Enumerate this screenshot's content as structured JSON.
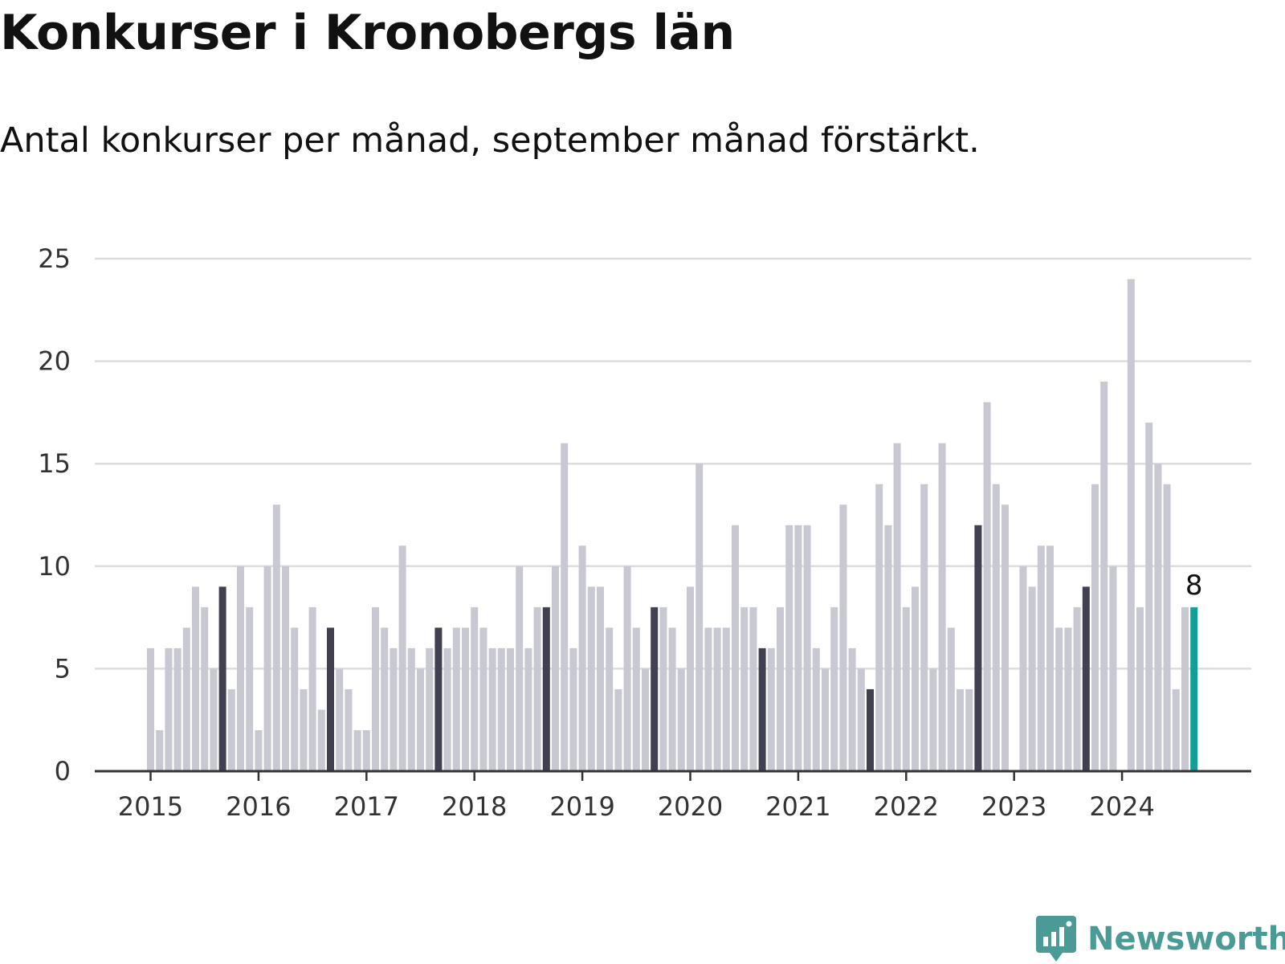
{
  "title": "Konkurser i Kronobergs län",
  "subtitle": "Antal konkurser per månad, september månad förstärkt.",
  "brand": {
    "name": "Newsworthy",
    "color": "#4a9a95"
  },
  "colors": {
    "bar": "#c8c8d2",
    "highlight": "#404050",
    "latest": "#139e96",
    "grid": "#dddddd",
    "axis": "#333333"
  },
  "chart_data": {
    "type": "bar",
    "title": "Konkurser i Kronobergs län",
    "subtitle": "Antal konkurser per månad, september månad förstärkt.",
    "xlabel": "",
    "ylabel": "",
    "ylim": [
      0,
      25
    ],
    "yticks": [
      0,
      5,
      10,
      15,
      20,
      25
    ],
    "xtick_labels": [
      "2015",
      "2016",
      "2017",
      "2018",
      "2019",
      "2020",
      "2021",
      "2022",
      "2023",
      "2024"
    ],
    "start": "2015-01",
    "grid": true,
    "legend": "none",
    "highlight_month": "september",
    "latest_label": "8",
    "values": [
      6,
      2,
      6,
      6,
      7,
      9,
      8,
      5,
      9,
      4,
      10,
      8,
      2,
      10,
      13,
      10,
      7,
      4,
      8,
      3,
      7,
      5,
      4,
      2,
      2,
      8,
      7,
      6,
      11,
      6,
      5,
      6,
      7,
      6,
      7,
      7,
      8,
      7,
      6,
      6,
      6,
      10,
      6,
      8,
      8,
      10,
      16,
      6,
      11,
      9,
      9,
      7,
      4,
      10,
      7,
      5,
      8,
      8,
      7,
      5,
      9,
      15,
      7,
      7,
      7,
      12,
      8,
      8,
      6,
      6,
      8,
      12,
      12,
      12,
      6,
      5,
      8,
      13,
      6,
      5,
      4,
      14,
      12,
      16,
      8,
      9,
      14,
      5,
      16,
      7,
      4,
      4,
      12,
      18,
      14,
      13,
      0,
      10,
      9,
      11,
      11,
      7,
      7,
      8,
      9,
      14,
      19,
      10,
      0,
      24,
      8,
      17,
      15,
      14,
      4,
      8,
      8
    ]
  }
}
